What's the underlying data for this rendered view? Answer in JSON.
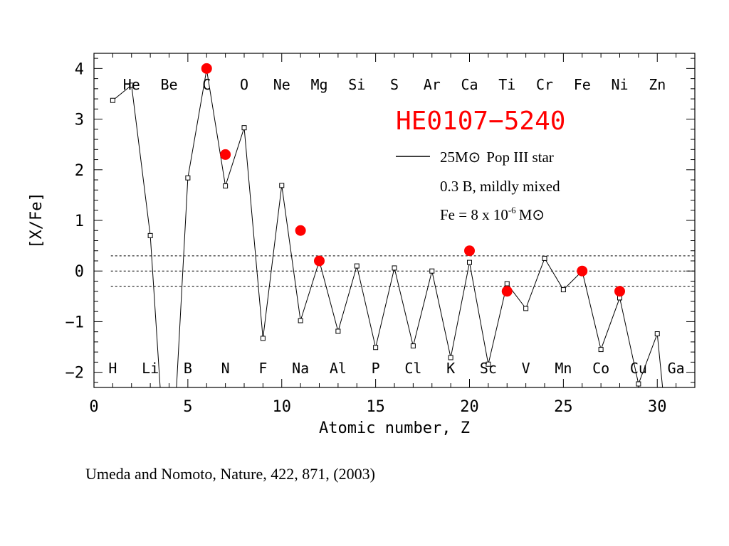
{
  "chart_data": {
    "type": "line",
    "title": "HE0107−5240",
    "xlabel": "Atomic number, Z",
    "ylabel": "[X/Fe]",
    "xlim": [
      0,
      32
    ],
    "ylim": [
      -2.3,
      4.3
    ],
    "x_ticks": [
      0,
      5,
      10,
      15,
      20,
      25,
      30
    ],
    "y_ticks": [
      -2,
      -1,
      0,
      1,
      2,
      3,
      4
    ],
    "grid": false,
    "legend_position": "top-right",
    "model_series": {
      "name": "25 M⊙ Pop III star",
      "points": [
        {
          "z": 1,
          "y": 3.37
        },
        {
          "z": 2,
          "y": 3.67
        },
        {
          "z": 3,
          "y": 0.7
        },
        {
          "z": 4,
          "y": -5.0
        },
        {
          "z": 5,
          "y": 1.84
        },
        {
          "z": 6,
          "y": 3.98
        },
        {
          "z": 7,
          "y": 1.68
        },
        {
          "z": 8,
          "y": 2.83
        },
        {
          "z": 9,
          "y": -1.33
        },
        {
          "z": 10,
          "y": 1.69
        },
        {
          "z": 11,
          "y": -0.98
        },
        {
          "z": 12,
          "y": 0.2
        },
        {
          "z": 13,
          "y": -1.19
        },
        {
          "z": 14,
          "y": 0.1
        },
        {
          "z": 15,
          "y": -1.51
        },
        {
          "z": 16,
          "y": 0.06
        },
        {
          "z": 17,
          "y": -1.48
        },
        {
          "z": 18,
          "y": 0.0
        },
        {
          "z": 19,
          "y": -1.71
        },
        {
          "z": 20,
          "y": 0.17
        },
        {
          "z": 21,
          "y": -1.84
        },
        {
          "z": 22,
          "y": -0.25
        },
        {
          "z": 23,
          "y": -0.74
        },
        {
          "z": 24,
          "y": 0.25
        },
        {
          "z": 25,
          "y": -0.37
        },
        {
          "z": 26,
          "y": 0.0
        },
        {
          "z": 27,
          "y": -1.55
        },
        {
          "z": 28,
          "y": -0.53
        },
        {
          "z": 29,
          "y": -2.23
        },
        {
          "z": 30,
          "y": -1.24
        },
        {
          "z": 31,
          "y": -5.0
        }
      ]
    },
    "observed_series": {
      "color": "#ff0000",
      "points": [
        {
          "z": 6,
          "y": 4.0
        },
        {
          "z": 7,
          "y": 2.3
        },
        {
          "z": 11,
          "y": 0.8
        },
        {
          "z": 12,
          "y": 0.2
        },
        {
          "z": 20,
          "y": 0.4
        },
        {
          "z": 22,
          "y": -0.4
        },
        {
          "z": 26,
          "y": 0.0
        },
        {
          "z": 28,
          "y": -0.4
        }
      ]
    },
    "reference_lines": [
      0.3,
      0.0,
      -0.3
    ],
    "element_labels_top": [
      {
        "z": 2,
        "label": "He"
      },
      {
        "z": 4,
        "label": "Be"
      },
      {
        "z": 6,
        "label": "C"
      },
      {
        "z": 8,
        "label": "O"
      },
      {
        "z": 10,
        "label": "Ne"
      },
      {
        "z": 12,
        "label": "Mg"
      },
      {
        "z": 14,
        "label": "Si"
      },
      {
        "z": 16,
        "label": "S"
      },
      {
        "z": 18,
        "label": "Ar"
      },
      {
        "z": 20,
        "label": "Ca"
      },
      {
        "z": 22,
        "label": "Ti"
      },
      {
        "z": 24,
        "label": "Cr"
      },
      {
        "z": 26,
        "label": "Fe"
      },
      {
        "z": 28,
        "label": "Ni"
      },
      {
        "z": 30,
        "label": "Zn"
      }
    ],
    "element_labels_bottom": [
      {
        "z": 1,
        "label": "H"
      },
      {
        "z": 3,
        "label": "Li"
      },
      {
        "z": 5,
        "label": "B"
      },
      {
        "z": 7,
        "label": "N"
      },
      {
        "z": 9,
        "label": "F"
      },
      {
        "z": 11,
        "label": "Na"
      },
      {
        "z": 13,
        "label": "Al"
      },
      {
        "z": 15,
        "label": "P"
      },
      {
        "z": 17,
        "label": "Cl"
      },
      {
        "z": 19,
        "label": "K"
      },
      {
        "z": 21,
        "label": "Sc"
      },
      {
        "z": 23,
        "label": "V"
      },
      {
        "z": 25,
        "label": "Mn"
      },
      {
        "z": 27,
        "label": "Co"
      },
      {
        "z": 29,
        "label": "Cu"
      },
      {
        "z": 31,
        "label": "Ga"
      }
    ],
    "annotations": {
      "legend_line1_mass": "25",
      "legend_line1_unit": "M⊙",
      "legend_line1_text": "Pop III star",
      "line2": "0.3 B, mildly mixed",
      "line3_prefix": "Fe = 8 x 10",
      "line3_exponent": "-6",
      "line3_unit": "M⊙"
    }
  },
  "caption": "Umeda and Nomoto, Nature, 422, 871, (2003)",
  "colors": {
    "observed": "#ff0000",
    "title": "#ff0000",
    "line": "#000000"
  }
}
